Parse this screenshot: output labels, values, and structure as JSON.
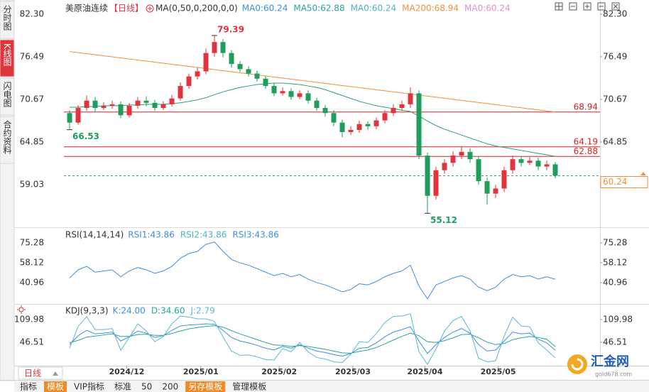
{
  "sidebar": {
    "tabs": [
      "分时图",
      "K线图",
      "闪电图",
      "合约资料"
    ],
    "selected": 1
  },
  "chart_data": [
    {
      "type": "candlestick",
      "title": "美原油连续",
      "period": "【日线】",
      "ma_setting": "MA(0,50,0,200,0,0)",
      "ma_labels": [
        {
          "text": "MA0:60.24",
          "color": "#3d8fe0"
        },
        {
          "text": "MA50:62.88",
          "color": "#26a69a"
        },
        {
          "text": "MA0:60.24",
          "color": "#4fb3c7"
        },
        {
          "text": "MA200:68.94",
          "color": "#f0913a"
        },
        {
          "text": "MA0:60.24",
          "color": "#e58ec6"
        }
      ],
      "up_color": "#e0353c",
      "down_color": "#1e9e5a",
      "xlim": [
        -0.67,
        62.25
      ],
      "ylim": [
        53.21,
        83.27
      ],
      "yticks": [
        {
          "value": 82.3,
          "label": "82.30"
        },
        76.49,
        70.67,
        64.85,
        59.03
      ],
      "open": [
        68.8,
        67.5,
        69.5,
        70.5,
        69.5,
        69.8,
        70.0,
        68.5,
        69.8,
        70.5,
        70.2,
        69.5,
        70.0,
        70.8,
        72.5,
        73.8,
        74.5,
        77.0,
        78.5,
        77.0,
        75.5,
        74.8,
        74.2,
        73.5,
        72.5,
        71.5,
        71.8,
        71.0,
        71.5,
        70.5,
        69.5,
        68.8,
        67.5,
        66.2,
        66.5,
        67.3,
        67.0,
        67.8,
        68.8,
        69.5,
        70.0,
        71.5,
        63.0,
        57.5,
        61.0,
        62.0,
        63.0,
        63.5,
        62.5,
        59.5,
        57.8,
        58.5,
        61.0,
        62.5,
        62.0,
        62.3,
        61.5,
        61.8
      ],
      "high": [
        69.2,
        69.9,
        71.2,
        71.0,
        70.3,
        70.5,
        70.4,
        70.2,
        71.0,
        71.1,
        70.6,
        70.4,
        71.3,
        73.0,
        74.2,
        75.0,
        77.6,
        79.39,
        78.9,
        77.4,
        75.9,
        75.2,
        74.6,
        73.9,
        72.9,
        72.3,
        72.2,
        71.9,
        71.9,
        70.9,
        69.9,
        69.2,
        67.9,
        67.0,
        67.8,
        67.7,
        68.2,
        69.2,
        70.0,
        70.5,
        72.3,
        71.9,
        63.4,
        61.5,
        62.5,
        63.6,
        64.3,
        64.0,
        62.9,
        60.0,
        59.0,
        61.5,
        63.0,
        62.9,
        62.8,
        62.7,
        62.3,
        62.1
      ],
      "low": [
        66.53,
        67.2,
        69.1,
        69.0,
        69.2,
        69.4,
        68.1,
        68.2,
        69.4,
        69.7,
        69.1,
        69.2,
        69.7,
        70.5,
        72.1,
        73.4,
        74.1,
        76.5,
        76.4,
        75.0,
        74.4,
        73.8,
        73.1,
        72.1,
        71.1,
        71.2,
        70.6,
        70.7,
        70.1,
        69.1,
        68.3,
        67.0,
        65.5,
        65.8,
        66.1,
        66.5,
        66.6,
        67.4,
        68.4,
        69.1,
        69.5,
        62.5,
        55.12,
        57.0,
        60.5,
        61.5,
        62.5,
        62.0,
        59.0,
        56.3,
        57.2,
        58.0,
        60.5,
        61.5,
        61.7,
        61.0,
        61.0,
        59.9
      ],
      "close": [
        67.5,
        69.5,
        70.5,
        69.5,
        69.8,
        70.0,
        68.5,
        69.8,
        70.5,
        70.2,
        69.5,
        70.0,
        70.8,
        72.5,
        73.8,
        74.5,
        77.0,
        78.5,
        77.0,
        75.5,
        74.8,
        74.2,
        73.5,
        72.5,
        71.5,
        71.8,
        71.0,
        71.5,
        70.5,
        69.5,
        68.8,
        67.5,
        66.2,
        66.5,
        67.3,
        67.0,
        67.8,
        68.8,
        69.5,
        70.0,
        71.5,
        63.0,
        57.5,
        61.0,
        62.0,
        63.0,
        63.5,
        62.5,
        59.5,
        57.8,
        58.5,
        61.0,
        62.5,
        62.0,
        62.3,
        61.5,
        61.8,
        60.24
      ],
      "lines": [
        {
          "color": "#2f9e6e",
          "values": [
            69.6,
            69.6,
            69.7,
            69.7,
            69.8,
            69.8,
            69.8,
            69.9,
            69.9,
            70.0,
            70.0,
            70.0,
            70.1,
            70.2,
            70.4,
            70.6,
            70.9,
            71.3,
            71.7,
            72.0,
            72.3,
            72.5,
            72.7,
            72.8,
            72.9,
            72.9,
            72.8,
            72.7,
            72.5,
            72.3,
            72.0,
            71.6,
            71.2,
            70.8,
            70.4,
            70.1,
            69.8,
            69.6,
            69.4,
            69.2,
            69.0,
            68.4,
            67.7,
            67.1,
            66.6,
            66.2,
            65.8,
            65.4,
            65.0,
            64.6,
            64.3,
            64.1,
            63.9,
            63.7,
            63.5,
            63.3,
            63.1,
            62.88
          ]
        },
        {
          "color": "#f0913a",
          "values": [
            77.2,
            77.06,
            76.91,
            76.77,
            76.62,
            76.48,
            76.33,
            76.19,
            76.04,
            75.9,
            75.75,
            75.61,
            75.46,
            75.32,
            75.17,
            75.03,
            74.88,
            74.74,
            74.59,
            74.45,
            74.3,
            74.16,
            74.01,
            73.87,
            73.72,
            73.58,
            73.43,
            73.29,
            73.14,
            73.0,
            72.85,
            72.71,
            72.56,
            72.42,
            72.27,
            72.13,
            71.98,
            71.84,
            71.69,
            71.55,
            71.4,
            71.26,
            71.11,
            70.97,
            70.82,
            70.68,
            70.53,
            70.39,
            70.24,
            70.1,
            69.95,
            69.81,
            69.66,
            69.52,
            69.37,
            69.23,
            69.08,
            68.94
          ]
        }
      ],
      "hlines": [
        {
          "value": 68.94,
          "color": "#e02020",
          "style": "solid"
        },
        {
          "value": 64.19,
          "color": "#e02020",
          "style": "solid"
        },
        {
          "value": 62.88,
          "color": "#e02020",
          "style": "solid"
        },
        {
          "value": 60.24,
          "color": "#1fa0a8",
          "style": "dashed"
        }
      ],
      "annotations": [
        {
          "value": 79.39,
          "x": 17,
          "color": "#e0353c",
          "placement": "above"
        },
        {
          "value": 66.53,
          "x": 0,
          "color": "#1e9e5a",
          "placement": "below"
        },
        {
          "value": 55.12,
          "x": 42,
          "color": "#1e9e5a",
          "placement": "below"
        }
      ]
    },
    {
      "type": "line",
      "title": "RSI(14,14,14)",
      "legend": [
        {
          "text": "RSI1:43.86",
          "color": "#3d8fe0"
        },
        {
          "text": "RSI2:43.86",
          "color": "#4fb3c7"
        },
        {
          "text": "RSI3:43.86",
          "color": "#3d8fe0"
        }
      ],
      "xlim": [
        -0.67,
        62.25
      ],
      "ylim": [
        24.4,
        85.7
      ],
      "yticks": [
        75.28,
        58.12,
        40.96
      ],
      "series": [
        {
          "color": "#3d8fe0",
          "values": [
            45,
            52,
            55,
            50,
            51,
            52,
            46,
            51,
            54,
            52,
            49,
            51,
            55,
            62,
            66,
            68,
            74,
            76,
            68,
            61,
            58,
            56,
            53,
            50,
            47,
            49,
            46,
            48,
            44,
            41,
            39,
            36,
            33,
            35,
            40,
            39,
            42,
            46,
            49,
            51,
            56,
            38,
            27,
            39,
            42,
            45,
            47,
            44,
            37,
            34,
            37,
            44,
            48,
            46,
            47,
            44,
            46,
            43.86
          ]
        }
      ]
    },
    {
      "type": "line",
      "title": "KDJ(9,3,3)",
      "xlim": [
        -0.67,
        62.25
      ],
      "ylim": [
        -18.9,
        145.7
      ],
      "yticks": [
        109.98,
        46.51
      ],
      "series": [
        {
          "name": "K:24.00",
          "color": "#3d8fe0",
          "values": [
            40,
            65,
            80,
            70,
            72,
            75,
            50,
            62,
            78,
            72,
            60,
            65,
            80,
            92,
            95,
            96,
            98,
            97,
            80,
            60,
            50,
            45,
            38,
            30,
            25,
            35,
            30,
            40,
            30,
            22,
            18,
            12,
            8,
            15,
            30,
            32,
            45,
            62,
            75,
            82,
            90,
            50,
            15,
            40,
            60,
            75,
            85,
            72,
            40,
            22,
            25,
            50,
            75,
            70,
            72,
            55,
            45,
            24.0
          ]
        },
        {
          "name": "D:34.60",
          "color": "#26a69a",
          "values": [
            45,
            52,
            61,
            64,
            67,
            70,
            63,
            63,
            68,
            69,
            66,
            66,
            71,
            78,
            84,
            88,
            91,
            93,
            89,
            79,
            70,
            62,
            54,
            46,
            39,
            38,
            35,
            37,
            35,
            31,
            27,
            22,
            17,
            16,
            21,
            25,
            32,
            42,
            53,
            63,
            72,
            65,
            48,
            46,
            51,
            59,
            68,
            69,
            59,
            47,
            40,
            43,
            54,
            59,
            63,
            60,
            55,
            34.6
          ]
        },
        {
          "name": "J:2.79",
          "color": "#5bb8d6",
          "values": [
            30,
            91,
            118,
            82,
            82,
            85,
            24,
            60,
            98,
            78,
            48,
            63,
            98,
            120,
            117,
            112,
            112,
            105,
            62,
            22,
            10,
            11,
            6,
            -2,
            -3,
            29,
            20,
            46,
            20,
            4,
            0,
            -8,
            -10,
            13,
            48,
            46,
            71,
            102,
            119,
            120,
            126,
            20,
            -15,
            28,
            78,
            107,
            119,
            78,
            2,
            -8,
            -5,
            64,
            117,
            92,
            90,
            45,
            25,
            2.79
          ]
        }
      ],
      "xticks": [
        {
          "value": 6.7,
          "label": "2024/12"
        },
        {
          "value": 15.4,
          "label": "2025/01"
        },
        {
          "value": 24.6,
          "label": "2025/02"
        },
        {
          "value": 33.25,
          "label": "2025/03"
        },
        {
          "value": 41.7,
          "label": "2025/04"
        },
        {
          "value": 50.3,
          "label": "2025/05"
        }
      ]
    }
  ],
  "period_button": "日线",
  "footer": {
    "items": [
      {
        "text": "指标",
        "highlight": false
      },
      {
        "text": "模板",
        "highlight": true
      },
      {
        "text": "VIP指标",
        "highlight": false
      },
      {
        "text": "标准",
        "highlight": false
      },
      {
        "text": "50",
        "highlight": false
      },
      {
        "text": "200",
        "highlight": false
      },
      {
        "text": "另存模板",
        "highlight": true
      },
      {
        "text": "管理模板",
        "highlight": false
      }
    ]
  },
  "logo": {
    "name": "汇金网",
    "site": "gold678.com"
  }
}
